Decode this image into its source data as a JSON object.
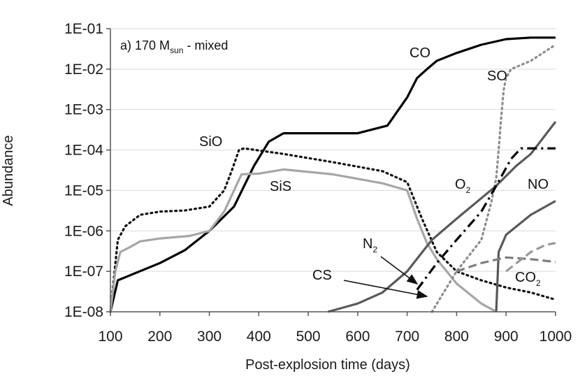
{
  "chart_data": {
    "type": "line",
    "title": "a) 170 M",
    "title_subscript": "sun",
    "title_suffix": " - mixed",
    "xlabel": "Post-explosion time (days)",
    "ylabel": "Abundance",
    "xlim": [
      100,
      1000
    ],
    "ylim": [
      1e-08,
      0.1
    ],
    "yscale": "log",
    "x_ticks": [
      100,
      200,
      300,
      400,
      500,
      600,
      700,
      800,
      900,
      1000
    ],
    "x_tick_labels": [
      "100",
      "200",
      "300",
      "400",
      "500",
      "600",
      "700",
      "800",
      "900",
      "1000"
    ],
    "y_ticks": [
      1e-08,
      1e-07,
      1e-06,
      1e-05,
      0.0001,
      0.001,
      0.01,
      0.1
    ],
    "y_tick_labels": [
      "1E-08",
      "1E-07",
      "1E-06",
      "1E-05",
      "1E-04",
      "1E-03",
      "1E-02",
      "1E-01"
    ],
    "grid": true,
    "series": [
      {
        "name": "CO",
        "color": "#000000",
        "style": "solid",
        "points": [
          [
            100,
            1e-08
          ],
          [
            115,
            6e-08
          ],
          [
            140,
            8e-08
          ],
          [
            200,
            1.6e-07
          ],
          [
            250,
            3.3e-07
          ],
          [
            300,
            1e-06
          ],
          [
            350,
            4e-06
          ],
          [
            390,
            4e-05
          ],
          [
            420,
            0.00016
          ],
          [
            450,
            0.00026
          ],
          [
            500,
            0.00026
          ],
          [
            600,
            0.00026
          ],
          [
            660,
            0.0004
          ],
          [
            700,
            0.002
          ],
          [
            720,
            0.006
          ],
          [
            740,
            0.01
          ],
          [
            760,
            0.016
          ],
          [
            800,
            0.025
          ],
          [
            850,
            0.04
          ],
          [
            900,
            0.055
          ],
          [
            950,
            0.06
          ],
          [
            1000,
            0.06
          ]
        ]
      },
      {
        "name": "SiO",
        "color": "#111111",
        "style": "dotted",
        "points": [
          [
            100,
            1e-08
          ],
          [
            115,
            6e-07
          ],
          [
            130,
            1.3e-06
          ],
          [
            160,
            2.5e-06
          ],
          [
            200,
            3e-06
          ],
          [
            250,
            3.2e-06
          ],
          [
            300,
            4e-06
          ],
          [
            330,
            1e-05
          ],
          [
            345,
            3e-05
          ],
          [
            360,
            0.0001
          ],
          [
            370,
            0.00011
          ],
          [
            450,
            8e-05
          ],
          [
            550,
            5e-05
          ],
          [
            650,
            3e-05
          ],
          [
            700,
            1.6e-05
          ],
          [
            730,
            2e-06
          ],
          [
            760,
            3e-07
          ],
          [
            800,
            1e-07
          ],
          [
            850,
            6e-08
          ],
          [
            900,
            4e-08
          ],
          [
            950,
            3e-08
          ],
          [
            1000,
            2e-08
          ]
        ]
      },
      {
        "name": "SiS",
        "color": "#a6a6a6",
        "style": "solid",
        "points": [
          [
            100,
            1e-08
          ],
          [
            110,
            1e-07
          ],
          [
            120,
            3e-07
          ],
          [
            140,
            4e-07
          ],
          [
            160,
            5.5e-07
          ],
          [
            200,
            6.5e-07
          ],
          [
            260,
            7.5e-07
          ],
          [
            300,
            1e-06
          ],
          [
            330,
            3e-06
          ],
          [
            350,
            1e-05
          ],
          [
            365,
            2.5e-05
          ],
          [
            400,
            2.6e-05
          ],
          [
            450,
            3.3e-05
          ],
          [
            550,
            2.5e-05
          ],
          [
            650,
            1.5e-05
          ],
          [
            700,
            1e-05
          ],
          [
            720,
            2e-06
          ],
          [
            740,
            5e-07
          ],
          [
            760,
            2e-07
          ],
          [
            800,
            5e-08
          ],
          [
            850,
            1.6e-08
          ],
          [
            880,
            1e-08
          ]
        ]
      },
      {
        "name": "SO",
        "color": "#8c8c8c",
        "style": "dotted",
        "points": [
          [
            750,
            1e-08
          ],
          [
            800,
            1e-07
          ],
          [
            850,
            6e-07
          ],
          [
            870,
            5e-06
          ],
          [
            880,
            2e-05
          ],
          [
            885,
            0.0001
          ],
          [
            890,
            0.0006
          ],
          [
            895,
            0.003
          ],
          [
            900,
            0.006
          ],
          [
            910,
            0.01
          ],
          [
            950,
            0.016
          ],
          [
            1000,
            0.04
          ]
        ]
      },
      {
        "name": "O2",
        "color": "#595959",
        "style": "solid",
        "points": [
          [
            540,
            1e-08
          ],
          [
            600,
            1.6e-08
          ],
          [
            650,
            3e-08
          ],
          [
            700,
            1e-07
          ],
          [
            750,
            6e-07
          ],
          [
            800,
            2e-06
          ],
          [
            880,
            1.3e-05
          ],
          [
            920,
            4e-05
          ],
          [
            950,
            8e-05
          ],
          [
            1000,
            0.0005
          ]
        ]
      },
      {
        "name": "N2",
        "color": "#000000",
        "style": "dashdot",
        "points": [
          [
            720,
            3.5e-08
          ],
          [
            760,
            1.6e-07
          ],
          [
            800,
            6e-07
          ],
          [
            850,
            3e-06
          ],
          [
            880,
            1.3e-05
          ],
          [
            910,
            6e-05
          ],
          [
            930,
            0.00011
          ],
          [
            1000,
            0.00011
          ]
        ]
      },
      {
        "name": "NO",
        "color": "#595959",
        "style": "solid",
        "points": [
          [
            880,
            1e-08
          ],
          [
            885,
            3e-07
          ],
          [
            900,
            8e-07
          ],
          [
            950,
            2.5e-06
          ],
          [
            1000,
            5.5e-06
          ]
        ]
      },
      {
        "name": "CO2",
        "color": "#7f7f7f",
        "style": "dashed",
        "points": [
          [
            800,
            1e-07
          ],
          [
            850,
            1.6e-07
          ],
          [
            900,
            2.2e-07
          ],
          [
            950,
            2e-07
          ],
          [
            1000,
            1.7e-07
          ]
        ]
      },
      {
        "name": "CS",
        "color": "#999999",
        "style": "dashed",
        "points": [
          [
            900,
            1e-07
          ],
          [
            950,
            3e-07
          ],
          [
            980,
            4.5e-07
          ],
          [
            1000,
            5e-07
          ]
        ]
      }
    ],
    "annotations": [
      {
        "id": "CO",
        "text": "CO",
        "sub": ""
      },
      {
        "id": "SO",
        "text": "SO",
        "sub": ""
      },
      {
        "id": "SiO",
        "text": "SiO",
        "sub": ""
      },
      {
        "id": "SiS",
        "text": "SiS",
        "sub": ""
      },
      {
        "id": "O2",
        "text": "O",
        "sub": "2"
      },
      {
        "id": "NO",
        "text": "NO",
        "sub": ""
      },
      {
        "id": "N2",
        "text": "N",
        "sub": "2"
      },
      {
        "id": "CS",
        "text": "CS",
        "sub": ""
      },
      {
        "id": "CO2",
        "text": "CO",
        "sub": "2"
      }
    ]
  }
}
